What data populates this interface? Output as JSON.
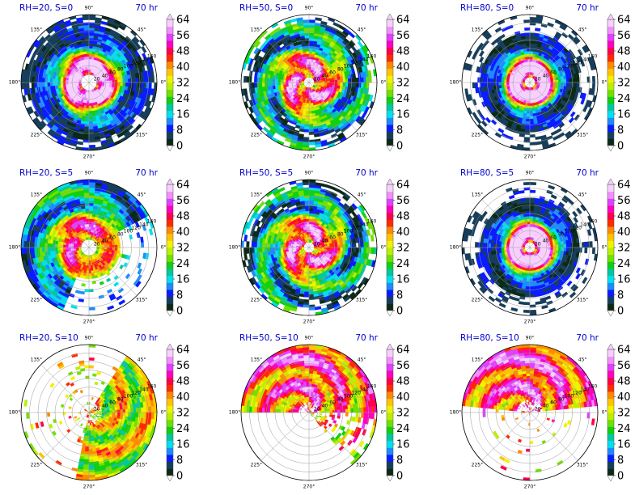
{
  "figure": {
    "time_label": "70 hr"
  },
  "chart_data": [
    {
      "type": "heatmap",
      "projection": "polar",
      "title": "RH=20, S=0",
      "time": "70 hr",
      "theta_ticks": [
        "0°",
        "45°",
        "90°",
        "135°",
        "180°",
        "225°",
        "270°",
        "315°"
      ],
      "radial_ticks": [
        "20",
        "40",
        "60",
        "80",
        "100",
        "120",
        "140",
        "160"
      ],
      "pattern": "compact",
      "colorbar": {
        "ticks": [
          0,
          8,
          16,
          24,
          32,
          40,
          48,
          56,
          64
        ],
        "extend": "both"
      }
    },
    {
      "type": "heatmap",
      "projection": "polar",
      "title": "RH=50, S=0",
      "time": "70 hr",
      "theta_ticks": [
        "0°",
        "45°",
        "90°",
        "135°",
        "180°",
        "225°",
        "270°",
        "315°"
      ],
      "radial_ticks": [
        "20",
        "40",
        "60",
        "80",
        "100",
        "120",
        "140",
        "160"
      ],
      "pattern": "wide",
      "colorbar": {
        "ticks": [
          0,
          8,
          16,
          24,
          32,
          40,
          48,
          56,
          64
        ],
        "extend": "both"
      }
    },
    {
      "type": "heatmap",
      "projection": "polar",
      "title": "RH=80, S=0",
      "time": "70 hr",
      "theta_ticks": [
        "0°",
        "45°",
        "90°",
        "135°",
        "180°",
        "225°",
        "270°",
        "315°"
      ],
      "radial_ticks": [
        "20",
        "40",
        "60",
        "80",
        "100",
        "120",
        "140",
        "160"
      ],
      "pattern": "intense",
      "colorbar": {
        "ticks": [
          0,
          8,
          16,
          24,
          32,
          40,
          48,
          56,
          64
        ],
        "extend": "both"
      }
    },
    {
      "type": "heatmap",
      "projection": "polar",
      "title": "RH=20, S=5",
      "time": "70 hr",
      "theta_ticks": [
        "0°",
        "45°",
        "90°",
        "135°",
        "180°",
        "225°",
        "270°",
        "315°"
      ],
      "radial_ticks": [
        "20",
        "40",
        "60",
        "80",
        "100",
        "120",
        "140",
        "160"
      ],
      "pattern": "sheared",
      "colorbar": {
        "ticks": [
          0,
          8,
          16,
          24,
          32,
          40,
          48,
          56,
          64
        ],
        "extend": "both"
      }
    },
    {
      "type": "heatmap",
      "projection": "polar",
      "title": "RH=50, S=5",
      "time": "70 hr",
      "theta_ticks": [
        "0°",
        "45°",
        "90°",
        "135°",
        "180°",
        "225°",
        "270°",
        "315°"
      ],
      "radial_ticks": [
        "20",
        "40",
        "60",
        "80",
        "100",
        "120",
        "140",
        "160"
      ],
      "pattern": "wide",
      "colorbar": {
        "ticks": [
          0,
          8,
          16,
          24,
          32,
          40,
          48,
          56,
          64
        ],
        "extend": "both"
      }
    },
    {
      "type": "heatmap",
      "projection": "polar",
      "title": "RH=80, S=5",
      "time": "70 hr",
      "theta_ticks": [
        "0°",
        "45°",
        "90°",
        "135°",
        "180°",
        "225°",
        "270°",
        "315°"
      ],
      "radial_ticks": [
        "20",
        "40",
        "60",
        "80",
        "100",
        "120",
        "140",
        "160"
      ],
      "pattern": "intense",
      "colorbar": {
        "ticks": [
          0,
          8,
          16,
          24,
          32,
          40,
          48,
          56,
          64
        ],
        "extend": "both"
      }
    },
    {
      "type": "heatmap",
      "projection": "polar",
      "title": "RH=20, S=10",
      "time": "70 hr",
      "theta_ticks": [
        "0°",
        "45°",
        "90°",
        "135°",
        "180°",
        "225°",
        "270°",
        "315°"
      ],
      "radial_ticks": [
        "20",
        "40",
        "60",
        "80",
        "100",
        "120",
        "140",
        "160"
      ],
      "pattern": "scattered",
      "colorbar": {
        "ticks": [
          0,
          8,
          16,
          24,
          32,
          40,
          48,
          56,
          64
        ],
        "extend": "both"
      }
    },
    {
      "type": "heatmap",
      "projection": "polar",
      "title": "RH=50, S=10",
      "time": "70 hr",
      "theta_ticks": [
        "0°",
        "45°",
        "90°",
        "135°",
        "180°",
        "225°",
        "270°",
        "315°"
      ],
      "radial_ticks": [
        "20",
        "40",
        "60",
        "80",
        "100",
        "120",
        "140",
        "160"
      ],
      "pattern": "band",
      "colorbar": {
        "ticks": [
          0,
          8,
          16,
          24,
          32,
          40,
          48,
          56,
          64
        ],
        "extend": "both"
      }
    },
    {
      "type": "heatmap",
      "projection": "polar",
      "title": "RH=80, S=10",
      "time": "70 hr",
      "theta_ticks": [
        "0°",
        "45°",
        "90°",
        "135°",
        "180°",
        "225°",
        "270°",
        "315°"
      ],
      "radial_ticks": [
        "20",
        "40",
        "60",
        "80",
        "100",
        "120",
        "140",
        "160"
      ],
      "pattern": "northband",
      "colorbar": {
        "ticks": [
          0,
          8,
          16,
          24,
          32,
          40,
          48,
          56,
          64
        ],
        "extend": "both"
      }
    }
  ],
  "colormap": [
    "#0b2a16",
    "#163e5a",
    "#0a1cff",
    "#1b8cff",
    "#00e0f0",
    "#00c8a0",
    "#10d010",
    "#70e000",
    "#b8f000",
    "#f2f200",
    "#ffc400",
    "#ff8a00",
    "#ff2a00",
    "#ff004a",
    "#ff00c0",
    "#e040ff",
    "#f090ff",
    "#f8d0ff"
  ],
  "colors": {
    "title": "#0000cc",
    "grid": "#9a9a9a",
    "axis": "#000000"
  }
}
